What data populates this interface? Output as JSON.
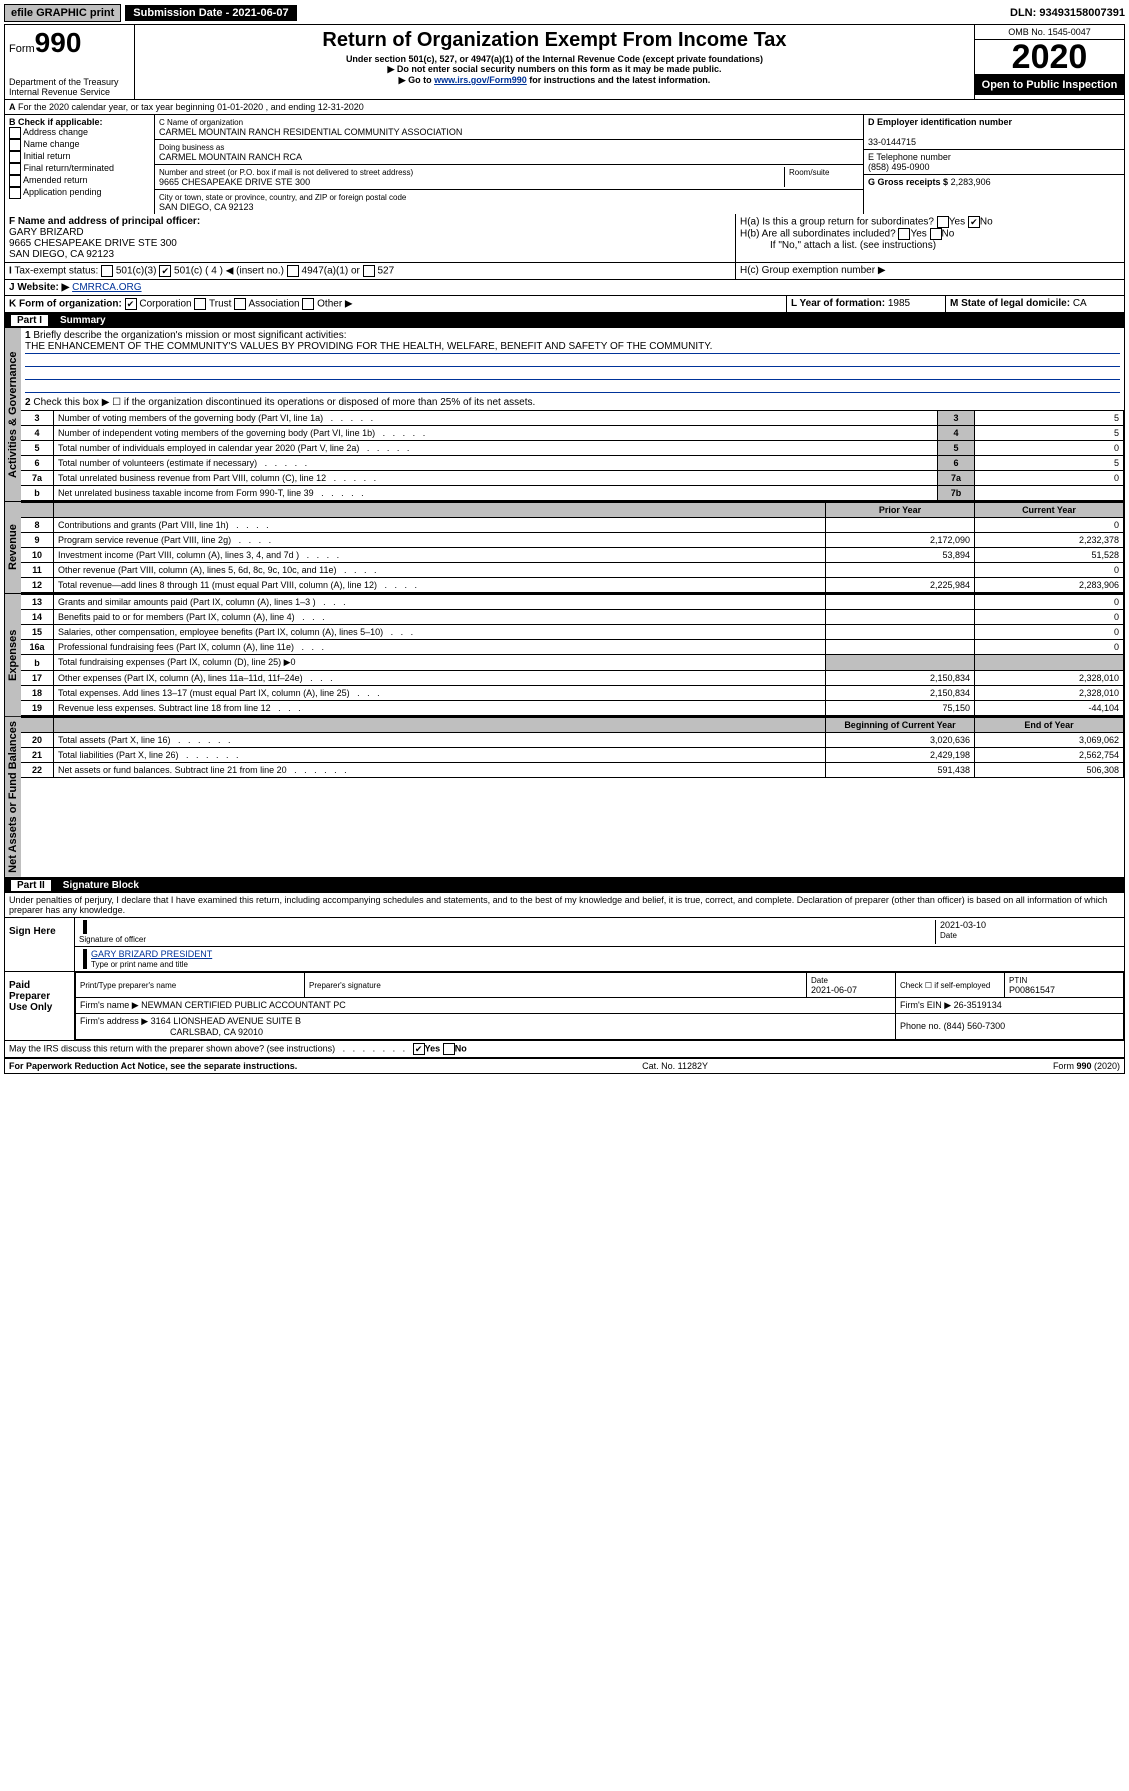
{
  "topbar": {
    "efile": "efile GRAPHIC print",
    "subdate_label": "Submission Date - 2021-06-07",
    "dln": "DLN: 93493158007391"
  },
  "header": {
    "form_prefix": "Form",
    "form_no": "990",
    "dept": "Department of the Treasury\nInternal Revenue Service",
    "title": "Return of Organization Exempt From Income Tax",
    "sub1": "Under section 501(c), 527, or 4947(a)(1) of the Internal Revenue Code (except private foundations)",
    "sub2": "▶ Do not enter social security numbers on this form as it may be made public.",
    "sub3_pre": "▶ Go to ",
    "sub3_link": "www.irs.gov/Form990",
    "sub3_post": " for instructions and the latest information.",
    "omb": "OMB No. 1545-0047",
    "year": "2020",
    "open": "Open to Public Inspection"
  },
  "periodA": "For the 2020 calendar year, or tax year beginning 01-01-2020     , and ending 12-31-2020",
  "boxB": {
    "label": "B Check if applicable:",
    "items": [
      "Address change",
      "Name change",
      "Initial return",
      "Final return/terminated",
      "Amended return",
      "Application pending"
    ]
  },
  "boxC": {
    "name_label": "C Name of organization",
    "name": "CARMEL MOUNTAIN RANCH RESIDENTIAL COMMUNITY ASSOCIATION",
    "dba_label": "Doing business as",
    "dba": "CARMEL MOUNTAIN RANCH RCA",
    "addr_label": "Number and street (or P.O. box if mail is not delivered to street address)",
    "room_label": "Room/suite",
    "addr": "9665 CHESAPEAKE DRIVE STE 300",
    "city_label": "City or town, state or province, country, and ZIP or foreign postal code",
    "city": "SAN DIEGO, CA  92123"
  },
  "boxD": {
    "label": "D Employer identification number",
    "value": "33-0144715"
  },
  "boxE": {
    "label": "E Telephone number",
    "value": "(858) 495-0900"
  },
  "boxG": {
    "label": "G Gross receipts $",
    "value": "2,283,906"
  },
  "boxF": {
    "label": "F  Name and address of principal officer:",
    "name": "GARY BRIZARD",
    "addr": "9665 CHESAPEAKE DRIVE STE 300",
    "city": "SAN DIEGO, CA  92123"
  },
  "boxH": {
    "a": "H(a)  Is this a group return for subordinates?",
    "b": "H(b)  Are all subordinates included?",
    "b_note": "If \"No,\" attach a list. (see instructions)",
    "c": "H(c)  Group exemption number ▶",
    "yes": "Yes",
    "no": "No"
  },
  "boxI": {
    "label": "Tax-exempt status:",
    "o1": "501(c)(3)",
    "o2": "501(c) ( 4 ) ◀ (insert no.)",
    "o3": "4947(a)(1) or",
    "o4": "527"
  },
  "boxJ": {
    "label": "Website: ▶",
    "value": "CMRRCA.ORG"
  },
  "boxK": {
    "label": "K Form of organization:",
    "corp": "Corporation",
    "trust": "Trust",
    "assoc": "Association",
    "other": "Other ▶"
  },
  "boxL": {
    "label": "L Year of formation:",
    "value": "1985"
  },
  "boxM": {
    "label": "M State of legal domicile:",
    "value": "CA"
  },
  "part1": {
    "title": "Part I",
    "name": "Summary",
    "q1": "Briefly describe the organization's mission or most significant activities:",
    "q1_val": "THE ENHANCEMENT OF THE COMMUNITY'S VALUES BY PROVIDING FOR THE HEALTH, WELFARE, BENEFIT AND SAFETY OF THE COMMUNITY.",
    "q2": "Check this box ▶ ☐  if the organization discontinued its operations or disposed of more than 25% of its net assets.",
    "rows_gov": [
      {
        "n": "3",
        "d": "Number of voting members of the governing body (Part VI, line 1a)",
        "box": "3",
        "v": "5"
      },
      {
        "n": "4",
        "d": "Number of independent voting members of the governing body (Part VI, line 1b)",
        "box": "4",
        "v": "5"
      },
      {
        "n": "5",
        "d": "Total number of individuals employed in calendar year 2020 (Part V, line 2a)",
        "box": "5",
        "v": "0"
      },
      {
        "n": "6",
        "d": "Total number of volunteers (estimate if necessary)",
        "box": "6",
        "v": "5"
      },
      {
        "n": "7a",
        "d": "Total unrelated business revenue from Part VIII, column (C), line 12",
        "box": "7a",
        "v": "0"
      },
      {
        "n": "b",
        "d": "Net unrelated business taxable income from Form 990-T, line 39",
        "box": "7b",
        "v": ""
      }
    ],
    "col_prior": "Prior Year",
    "col_current": "Current Year",
    "rows_rev": [
      {
        "n": "8",
        "d": "Contributions and grants (Part VIII, line 1h)",
        "p": "",
        "c": "0"
      },
      {
        "n": "9",
        "d": "Program service revenue (Part VIII, line 2g)",
        "p": "2,172,090",
        "c": "2,232,378"
      },
      {
        "n": "10",
        "d": "Investment income (Part VIII, column (A), lines 3, 4, and 7d )",
        "p": "53,894",
        "c": "51,528"
      },
      {
        "n": "11",
        "d": "Other revenue (Part VIII, column (A), lines 5, 6d, 8c, 9c, 10c, and 11e)",
        "p": "",
        "c": "0"
      },
      {
        "n": "12",
        "d": "Total revenue—add lines 8 through 11 (must equal Part VIII, column (A), line 12)",
        "p": "2,225,984",
        "c": "2,283,906"
      }
    ],
    "rows_exp": [
      {
        "n": "13",
        "d": "Grants and similar amounts paid (Part IX, column (A), lines 1–3 )",
        "p": "",
        "c": "0"
      },
      {
        "n": "14",
        "d": "Benefits paid to or for members (Part IX, column (A), line 4)",
        "p": "",
        "c": "0"
      },
      {
        "n": "15",
        "d": "Salaries, other compensation, employee benefits (Part IX, column (A), lines 5–10)",
        "p": "",
        "c": "0"
      },
      {
        "n": "16a",
        "d": "Professional fundraising fees (Part IX, column (A), line 11e)",
        "p": "",
        "c": "0"
      },
      {
        "n": "b",
        "d": "Total fundraising expenses (Part IX, column (D), line 25) ▶0",
        "p": null,
        "c": null
      },
      {
        "n": "17",
        "d": "Other expenses (Part IX, column (A), lines 11a–11d, 11f–24e)",
        "p": "2,150,834",
        "c": "2,328,010"
      },
      {
        "n": "18",
        "d": "Total expenses. Add lines 13–17 (must equal Part IX, column (A), line 25)",
        "p": "2,150,834",
        "c": "2,328,010"
      },
      {
        "n": "19",
        "d": "Revenue less expenses. Subtract line 18 from line 12",
        "p": "75,150",
        "c": "-44,104"
      }
    ],
    "col_begin": "Beginning of Current Year",
    "col_end": "End of Year",
    "rows_net": [
      {
        "n": "20",
        "d": "Total assets (Part X, line 16)",
        "p": "3,020,636",
        "c": "3,069,062"
      },
      {
        "n": "21",
        "d": "Total liabilities (Part X, line 26)",
        "p": "2,429,198",
        "c": "2,562,754"
      },
      {
        "n": "22",
        "d": "Net assets or fund balances. Subtract line 21 from line 20",
        "p": "591,438",
        "c": "506,308"
      }
    ],
    "vlabels": {
      "gov": "Activities & Governance",
      "rev": "Revenue",
      "exp": "Expenses",
      "net": "Net Assets or Fund Balances"
    }
  },
  "part2": {
    "title": "Part II",
    "name": "Signature Block",
    "perjury": "Under penalties of perjury, I declare that I have examined this return, including accompanying schedules and statements, and to the best of my knowledge and belief, it is true, correct, and complete. Declaration of preparer (other than officer) is based on all information of which preparer has any knowledge.",
    "sign_here": "Sign Here",
    "sig_officer": "Signature of officer",
    "sig_date": "2021-03-10",
    "date_label": "Date",
    "officer_name": "GARY BRIZARD  PRESIDENT",
    "type_name": "Type or print name and title",
    "paid": "Paid Preparer Use Only",
    "pp_name_label": "Print/Type preparer's name",
    "pp_sig_label": "Preparer's signature",
    "pp_date_label": "Date",
    "pp_date": "2021-06-07",
    "pp_check": "Check ☐ if self-employed",
    "ptin_label": "PTIN",
    "ptin": "P00861547",
    "firm_name_label": "Firm's name      ▶",
    "firm_name": "NEWMAN CERTIFIED PUBLIC ACCOUNTANT PC",
    "firm_ein_label": "Firm's EIN ▶",
    "firm_ein": "26-3519134",
    "firm_addr_label": "Firm's address ▶",
    "firm_addr": "3164 LIONSHEAD AVENUE SUITE B",
    "firm_city": "CARLSBAD, CA  92010",
    "phone_label": "Phone no.",
    "phone": "(844) 560-7300",
    "discuss": "May the IRS discuss this return with the preparer shown above? (see instructions)",
    "yes": "Yes",
    "no": "No"
  },
  "footer": {
    "pra": "For Paperwork Reduction Act Notice, see the separate instructions.",
    "cat": "Cat. No. 11282Y",
    "form": "Form 990 (2020)"
  }
}
